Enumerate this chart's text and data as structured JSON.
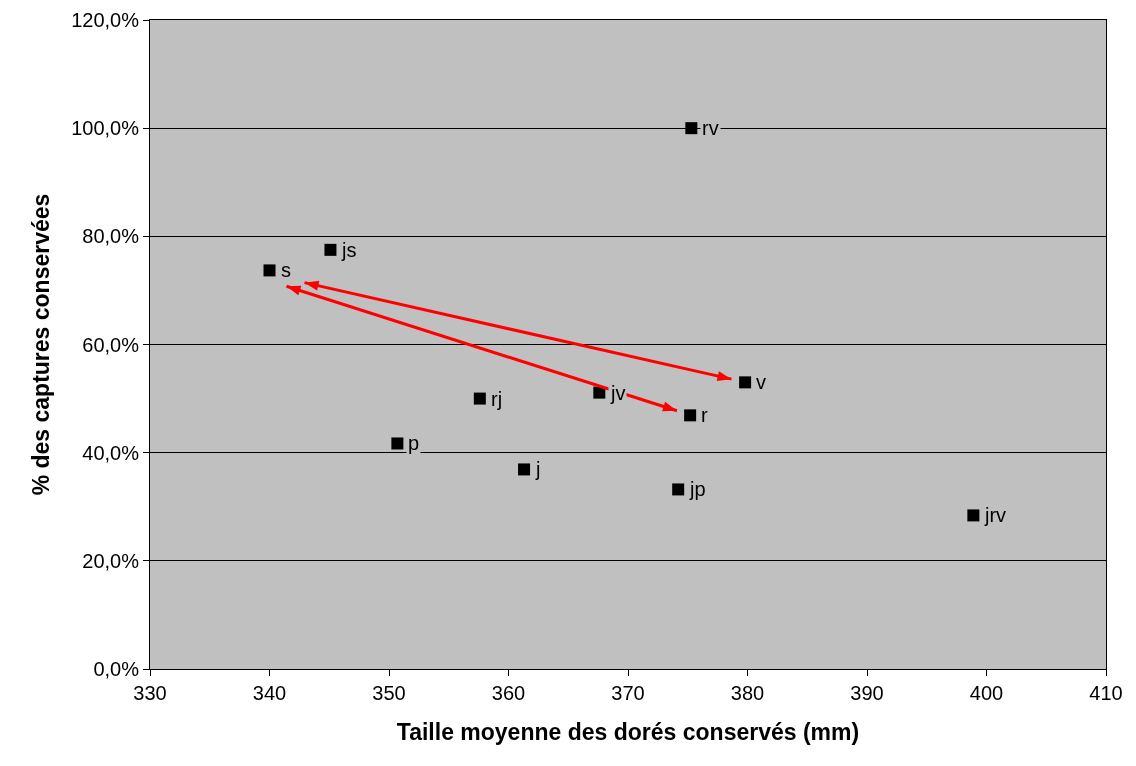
{
  "chart_data": {
    "type": "scatter",
    "xlabel": "Taille moyenne des dorés conservés (mm)",
    "ylabel": "% des captures conservées",
    "xlim": [
      330,
      410
    ],
    "xticks": [
      330,
      340,
      350,
      360,
      370,
      380,
      390,
      400,
      410
    ],
    "ylim": [
      0,
      120
    ],
    "yticks": [
      {
        "value": 0,
        "label": "0,0%"
      },
      {
        "value": 20,
        "label": "20,0%"
      },
      {
        "value": 40,
        "label": "40,0%"
      },
      {
        "value": 60,
        "label": "60,0%"
      },
      {
        "value": 80,
        "label": "80,0%"
      },
      {
        "value": 100,
        "label": "100,0%"
      },
      {
        "value": 120,
        "label": "120,0%"
      }
    ],
    "grid": "y",
    "series": [
      {
        "color": "#000000",
        "marker": "square",
        "x": [
          375.3,
          345.1,
          340.0,
          379.8,
          375.2,
          367.6,
          357.6,
          350.7,
          361.3,
          374.2,
          398.9
        ],
        "values": [
          100,
          77.5,
          73.7,
          53.0,
          46.9,
          51.1,
          50.0,
          41.7,
          36.9,
          33.2,
          28.4
        ],
        "value_labels": [
          "rv",
          "js",
          "s",
          "v",
          "r",
          "jv",
          "rj",
          "p",
          "j",
          "jp",
          "jrv"
        ]
      }
    ]
  }
}
